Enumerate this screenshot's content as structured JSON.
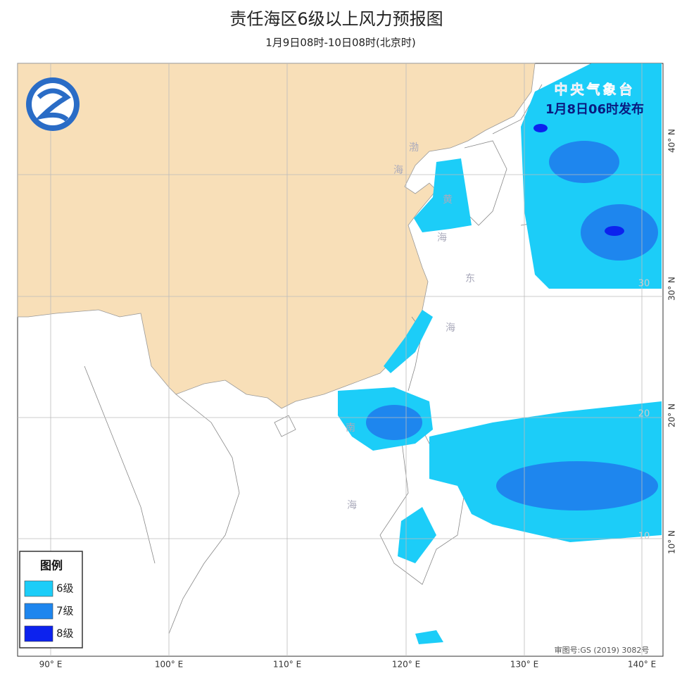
{
  "header": {
    "title": "责任海区6级以上风力预报图",
    "subtitle": "1月9日08时-10日08时(北京时)"
  },
  "map": {
    "publisher": "中央气象台",
    "issued": "1月8日06时发布",
    "approval": "审图号:GS (2019) 3082号",
    "longitude_labels": [
      "90° E",
      "100° E",
      "110° E",
      "120° E",
      "130° E",
      "140° E"
    ],
    "latitude_labels": [
      "40° N",
      "30° N",
      "20° N",
      "10° N"
    ],
    "inner_latitude_labels": [
      "30",
      "20",
      "10"
    ],
    "sea_labels": [
      "渤",
      "海",
      "黄",
      "海",
      "东",
      "海",
      "南",
      "海"
    ]
  },
  "legend": {
    "title": "图例",
    "items": [
      {
        "label": "6级",
        "color": "#1ccdf8"
      },
      {
        "label": "7级",
        "color": "#1e86ee"
      },
      {
        "label": "8级",
        "color": "#0c22ee"
      }
    ]
  }
}
